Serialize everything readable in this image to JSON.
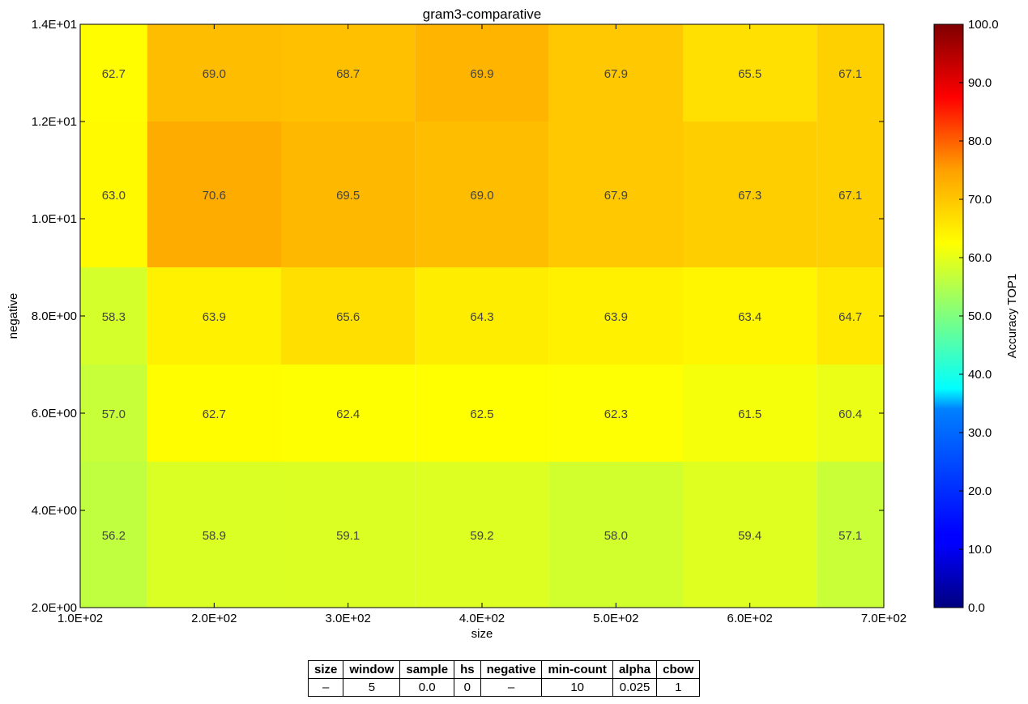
{
  "chart_data": {
    "type": "heatmap",
    "title": "gram3-comparative",
    "xlabel": "size",
    "ylabel": "negative",
    "x_ticks": [
      "1.0E+02",
      "2.0E+02",
      "3.0E+02",
      "4.0E+02",
      "5.0E+02",
      "6.0E+02",
      "7.0E+02"
    ],
    "y_ticks": [
      "2.0E+00",
      "4.0E+00",
      "6.0E+00",
      "8.0E+00",
      "1.0E+01",
      "1.2E+01",
      "1.4E+01"
    ],
    "xlim": [
      100,
      700
    ],
    "ylim": [
      2,
      14
    ],
    "columns": [
      100,
      200,
      300,
      400,
      500,
      600,
      700
    ],
    "rows_top_to_bottom": [
      14,
      10,
      8,
      6,
      4
    ],
    "values": [
      [
        62.7,
        69.0,
        68.7,
        69.9,
        67.9,
        65.5,
        67.1
      ],
      [
        63.0,
        70.6,
        69.5,
        69.0,
        67.9,
        67.3,
        67.1
      ],
      [
        58.3,
        63.9,
        65.6,
        64.3,
        63.9,
        63.4,
        64.7
      ],
      [
        57.0,
        62.7,
        62.4,
        62.5,
        62.3,
        61.5,
        60.4
      ],
      [
        56.2,
        58.9,
        59.1,
        59.2,
        58.0,
        59.4,
        57.1
      ]
    ],
    "colorbar": {
      "label": "Accuracy TOP1",
      "min": 0,
      "max": 100,
      "ticks": [
        "0.0",
        "10.0",
        "20.0",
        "30.0",
        "40.0",
        "50.0",
        "60.0",
        "70.0",
        "80.0",
        "90.0",
        "100.0"
      ],
      "colormap": "jet"
    }
  },
  "params_table": {
    "headers": [
      "size",
      "window",
      "sample",
      "hs",
      "negative",
      "min-count",
      "alpha",
      "cbow"
    ],
    "values": [
      "–",
      "5",
      "0.0",
      "0",
      "–",
      "10",
      "0.025",
      "1"
    ]
  }
}
